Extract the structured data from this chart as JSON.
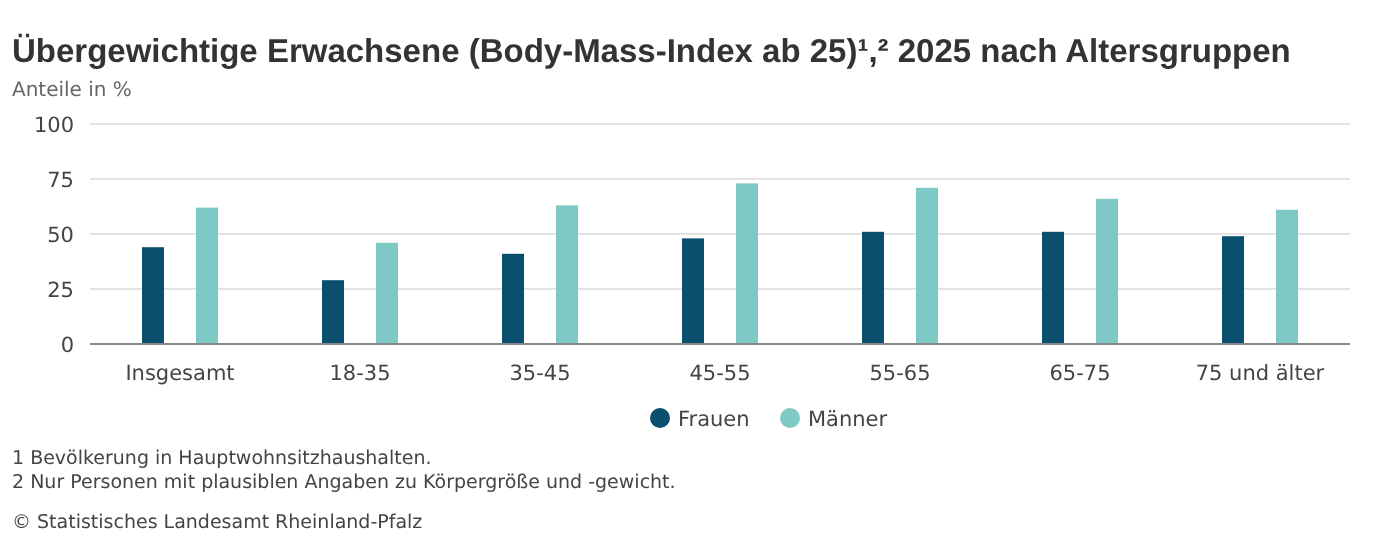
{
  "chart_data": {
    "type": "bar",
    "title": "Übergewichtige Erwachsene (Body-Mass-Index ab 25)¹,² 2025 nach Altersgruppen",
    "ylabel": "Anteile in %",
    "categories": [
      "Insgesamt",
      "18-35",
      "35-45",
      "45-55",
      "55-65",
      "65-75",
      "75 und älter"
    ],
    "series": [
      {
        "name": "Frauen",
        "color": "#0a4f6e",
        "values": [
          44,
          29,
          41,
          48,
          51,
          51,
          49
        ]
      },
      {
        "name": "Männer",
        "color": "#7ec8c6",
        "values": [
          62,
          46,
          63,
          73,
          71,
          66,
          61
        ]
      }
    ],
    "ylim": [
      0,
      100
    ],
    "yticks": [
      0,
      25,
      50,
      75,
      100
    ],
    "grid": "y",
    "legend": "bottom",
    "annotations": [
      "1 Bevölkerung in Hauptwohnsitzhaushalten.",
      "2 Nur Personen mit plausiblen Angaben zu Körpergröße und -gewicht.",
      "© Statistisches Landesamt Rheinland-Pfalz"
    ]
  }
}
